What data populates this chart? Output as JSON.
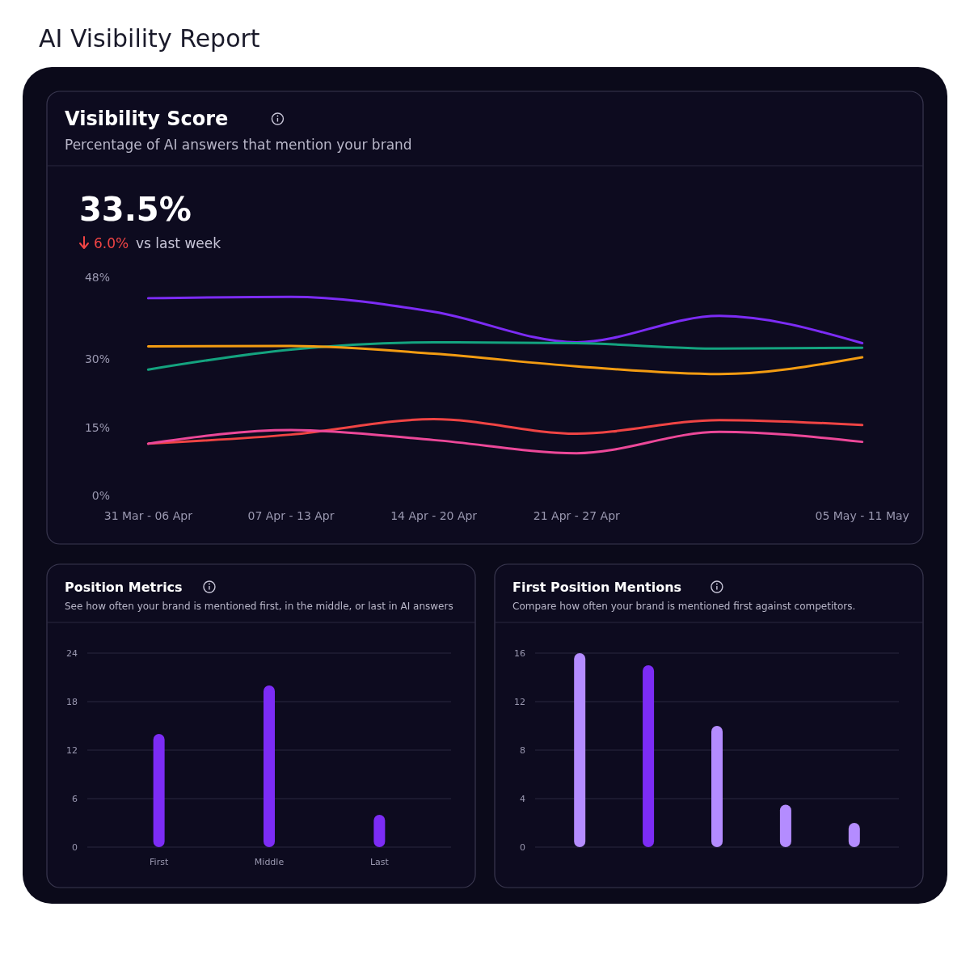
{
  "chart_data": [
    {
      "type": "line",
      "title": "Visibility Score",
      "subtitle": "Percentage of AI answers that mention your brand",
      "annotations": [
        "AI Visibility Report",
        "33.5%",
        "6.0%",
        "vs last week"
      ],
      "categories": [
        "31 Mar - 06 Apr",
        "07 Apr - 13 Apr",
        "14 Apr - 20 Apr",
        "21 Apr - 27 Apr",
        null,
        "05 May - 11 May"
      ],
      "series": [
        {
          "color": "#7c2cf5",
          "values": [
            43.4,
            43.7,
            40.4,
            33.7,
            39.5,
            33.5
          ]
        },
        {
          "color": "#14a37f",
          "values": [
            27.7,
            32.1,
            33.7,
            33.5,
            32.3,
            32.5
          ]
        },
        {
          "color": "#f39c12",
          "values": [
            32.8,
            32.9,
            31.2,
            28.4,
            26.7,
            30.4
          ]
        },
        {
          "color": "#ef4444",
          "values": [
            11.4,
            13.4,
            16.8,
            13.6,
            16.6,
            15.5
          ]
        },
        {
          "color": "#ec4899",
          "values": [
            11.4,
            14.4,
            12.2,
            9.3,
            14.0,
            11.8
          ]
        }
      ],
      "ylim": [
        0,
        48
      ],
      "yticks": [
        {
          "value": 0,
          "label": "0%"
        },
        {
          "value": 15,
          "label": "15%"
        },
        {
          "value": 30,
          "label": "30%"
        },
        {
          "value": 48,
          "label": "48%"
        }
      ]
    },
    {
      "type": "bar",
      "title": "Position Metrics",
      "subtitle": "See how often your brand is mentioned first, in the middle, or last in AI answers",
      "categories": [
        "First",
        "Middle",
        "Last"
      ],
      "values": [
        14,
        20,
        4
      ],
      "color": "#7c2cf5",
      "ylim": [
        0,
        24
      ],
      "yticks": [
        0,
        6,
        12,
        18,
        24
      ],
      "grid": "y"
    },
    {
      "type": "bar",
      "title": "First Position Mentions",
      "subtitle": "Compare how often your brand is mentioned first against competitors.",
      "categories": [
        null,
        null,
        null,
        null,
        null
      ],
      "values": [
        16,
        15,
        10,
        3.5,
        2
      ],
      "colors": [
        "#b48cff",
        "#7c2cf5",
        "#b48cff",
        "#b48cff",
        "#b48cff"
      ],
      "ylim": [
        0,
        16
      ],
      "yticks": [
        0,
        4,
        8,
        12,
        16
      ],
      "grid": "y"
    }
  ]
}
